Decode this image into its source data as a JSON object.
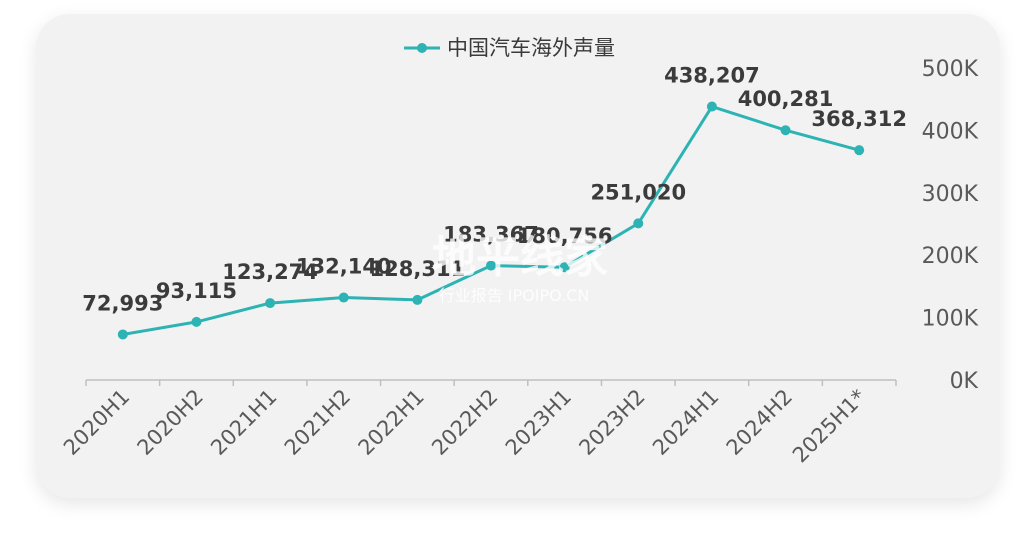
{
  "chart_data": {
    "type": "line",
    "categories": [
      "2020H1",
      "2020H2",
      "2021H1",
      "2021H2",
      "2022H1",
      "2022H2",
      "2023H1",
      "2023H2",
      "2024H1",
      "2024H2",
      "2025H1*"
    ],
    "series": [
      {
        "name": "中国汽车海外声量",
        "values": [
          72993,
          93115,
          123274,
          132140,
          128311,
          183367,
          180756,
          251020,
          438207,
          400281,
          368312
        ],
        "labels": [
          "72,993",
          "93,115",
          "123,274",
          "132,140",
          "128,311",
          "183,367",
          "180,756",
          "251,020",
          "438,207",
          "400,281",
          "368,312"
        ]
      }
    ],
    "ylim": [
      0,
      500000
    ],
    "yticks": [
      0,
      100000,
      200000,
      300000,
      400000,
      500000
    ],
    "ytick_labels": [
      "0K",
      "100K",
      "200K",
      "300K",
      "400K",
      "500K"
    ],
    "yaxis_position": "right",
    "legend_position": "top-center",
    "grid": false,
    "line_color": "#2db3b3"
  },
  "watermark": {
    "main": "地平线家",
    "sub": "行业报告 IPOIPO.CN"
  }
}
